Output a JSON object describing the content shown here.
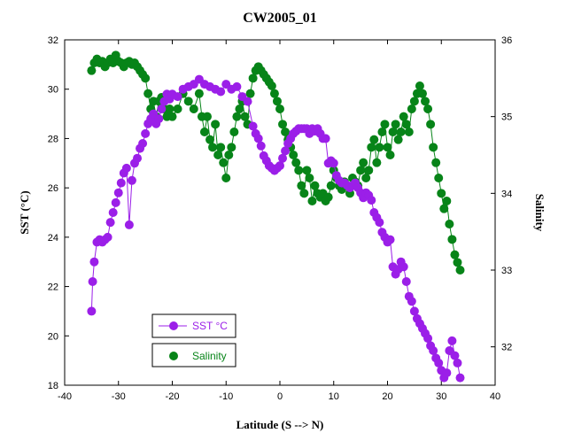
{
  "chart_data": {
    "type": "scatter",
    "title": "CW2005_01",
    "xlabel": "Latitude (S --> N)",
    "ylabel_left": "SST (°C)",
    "ylabel_right": "Salinity",
    "xlim": [
      -40,
      40
    ],
    "ylim_left": [
      18,
      32
    ],
    "ylim_right": [
      31.5,
      36
    ],
    "x_ticks": [
      -40,
      -30,
      -20,
      -10,
      0,
      10,
      20,
      30,
      40
    ],
    "y_ticks_left": [
      18,
      20,
      22,
      24,
      26,
      28,
      30,
      32
    ],
    "y_ticks_right": [
      32,
      33,
      34,
      35,
      36
    ],
    "grid": false,
    "legend_position": "bottom-left",
    "colors": {
      "sst": "#9B1FE8",
      "salinity": "#078418"
    },
    "series": [
      {
        "name": "SST °C",
        "axis": "left",
        "x": [
          -35,
          -34.8,
          -34.5,
          -34,
          -33.5,
          -33,
          -32.5,
          -32,
          -31.5,
          -31,
          -30.5,
          -30,
          -29.5,
          -29,
          -28.5,
          -28,
          -27.5,
          -27,
          -26.5,
          -26,
          -25.5,
          -25,
          -24.5,
          -24,
          -23.5,
          -23,
          -22.5,
          -22,
          -21.5,
          -21,
          -20.5,
          -20,
          -19,
          -18,
          -17,
          -16,
          -15,
          -14,
          -13,
          -12,
          -11,
          -10,
          -9,
          -8,
          -7,
          -6,
          -5,
          -4.5,
          -4,
          -3.5,
          -3,
          -2.5,
          -2,
          -1.5,
          -1,
          -0.5,
          0,
          0.5,
          1,
          1.5,
          2,
          2.5,
          3,
          3.5,
          4,
          4.5,
          5,
          5.5,
          6,
          6.5,
          7,
          7.5,
          8,
          8.5,
          9,
          9.5,
          10,
          10.5,
          11,
          11.5,
          12,
          12.5,
          13,
          13.5,
          14,
          14.5,
          15,
          15.5,
          16,
          16.5,
          17,
          17.5,
          18,
          18.5,
          19,
          19.5,
          20,
          20.5,
          21,
          21.5,
          22,
          22.5,
          23,
          23.5,
          24,
          24.5,
          25,
          25.5,
          26,
          26.5,
          27,
          27.5,
          28,
          28.5,
          29,
          29.5,
          30,
          30.5,
          31,
          31.5,
          32,
          32.5,
          33,
          33.5
        ],
        "values": [
          21.0,
          22.2,
          23.0,
          23.8,
          23.9,
          23.8,
          23.9,
          24.0,
          24.6,
          25.0,
          25.4,
          25.8,
          26.2,
          26.6,
          26.8,
          24.5,
          26.3,
          27.0,
          27.2,
          27.6,
          27.8,
          28.2,
          28.6,
          28.8,
          29.0,
          28.6,
          28.8,
          29.2,
          29.5,
          29.8,
          29.6,
          29.8,
          29.7,
          30.0,
          30.1,
          30.2,
          30.4,
          30.2,
          30.1,
          30.0,
          29.9,
          30.2,
          30.0,
          30.1,
          29.7,
          29.5,
          28.5,
          28.2,
          28.0,
          27.7,
          27.3,
          27.1,
          26.9,
          26.8,
          26.7,
          26.8,
          26.9,
          27.2,
          27.5,
          27.8,
          28.0,
          28.2,
          28.3,
          28.4,
          28.4,
          28.4,
          28.4,
          28.2,
          28.4,
          28.3,
          28.4,
          28.2,
          28.0,
          28.0,
          27.0,
          27.1,
          27.0,
          26.5,
          26.3,
          26.2,
          26.2,
          26.1,
          26.0,
          26.1,
          26.2,
          26.0,
          25.8,
          25.6,
          25.8,
          25.7,
          25.5,
          25.0,
          24.8,
          24.6,
          24.2,
          24.0,
          23.8,
          23.9,
          22.8,
          22.5,
          22.7,
          23.0,
          22.8,
          22.2,
          21.6,
          21.4,
          21.0,
          20.7,
          20.5,
          20.3,
          20.1,
          19.9,
          19.6,
          19.4,
          19.1,
          18.9,
          18.6,
          18.3,
          18.5,
          19.4,
          19.8,
          19.2,
          18.9,
          18.3
        ]
      },
      {
        "name": "Salinity",
        "axis": "right",
        "x": [
          -35,
          -34.5,
          -34,
          -33.5,
          -33,
          -32.5,
          -32,
          -31.5,
          -31,
          -30.5,
          -30,
          -29.5,
          -29,
          -28.5,
          -28,
          -27.5,
          -27,
          -26.5,
          -26,
          -25.5,
          -25,
          -24.5,
          -24,
          -23.5,
          -23,
          -22.5,
          -22,
          -21.5,
          -21,
          -20.5,
          -20,
          -19,
          -18,
          -17,
          -16,
          -15,
          -14.5,
          -14,
          -13.5,
          -13,
          -12.5,
          -12,
          -11.5,
          -11,
          -10.5,
          -10,
          -9.5,
          -9,
          -8.5,
          -8,
          -7.5,
          -7,
          -6.5,
          -6,
          -5.5,
          -5,
          -4.5,
          -4,
          -3.5,
          -3,
          -2.5,
          -2,
          -1.5,
          -1,
          -0.5,
          0,
          0.5,
          1,
          1.5,
          2,
          2.5,
          3,
          3.5,
          4,
          4.5,
          5,
          5.5,
          6,
          6.5,
          7,
          7.5,
          8,
          8.5,
          9,
          9.5,
          10,
          10.5,
          11,
          11.5,
          12,
          12.5,
          13,
          13.5,
          14,
          14.5,
          15,
          15.5,
          16,
          16.5,
          17,
          17.5,
          18,
          18.5,
          19,
          19.5,
          20,
          20.5,
          21,
          21.5,
          22,
          22.5,
          23,
          23.5,
          24,
          24.5,
          25,
          25.5,
          26,
          26.5,
          27,
          27.5,
          28,
          28.5,
          29,
          29.5,
          30,
          30.5,
          31,
          31.5,
          32,
          32.5,
          33,
          33.5
        ],
        "values": [
          35.6,
          35.7,
          35.75,
          35.7,
          35.72,
          35.65,
          35.7,
          35.75,
          35.7,
          35.8,
          35.72,
          35.7,
          35.65,
          35.7,
          35.72,
          35.68,
          35.7,
          35.65,
          35.6,
          35.55,
          35.5,
          35.3,
          35.1,
          35.2,
          35.0,
          35.2,
          35.25,
          35.1,
          35.0,
          35.1,
          35.0,
          35.1,
          35.3,
          35.2,
          35.1,
          35.3,
          35.0,
          34.8,
          35.0,
          34.7,
          34.6,
          34.9,
          34.5,
          34.6,
          34.4,
          34.2,
          34.5,
          34.6,
          34.8,
          35.0,
          35.1,
          35.2,
          35.0,
          34.9,
          35.3,
          35.5,
          35.6,
          35.65,
          35.6,
          35.55,
          35.5,
          35.45,
          35.4,
          35.3,
          35.2,
          35.1,
          34.9,
          34.8,
          34.7,
          34.6,
          34.5,
          34.4,
          34.3,
          34.1,
          34.0,
          34.3,
          34.2,
          33.9,
          34.1,
          34.0,
          33.95,
          34.0,
          33.9,
          33.95,
          34.1,
          34.3,
          34.2,
          34.1,
          34.05,
          34.15,
          34.1,
          34.0,
          34.2,
          34.15,
          34.1,
          34.3,
          34.4,
          34.2,
          34.3,
          34.6,
          34.7,
          34.4,
          34.6,
          34.8,
          34.9,
          34.6,
          34.5,
          34.8,
          34.9,
          34.7,
          34.8,
          35.0,
          34.9,
          34.8,
          35.1,
          35.2,
          35.3,
          35.4,
          35.3,
          35.2,
          35.1,
          34.9,
          34.6,
          34.4,
          34.2,
          34.0,
          33.8,
          33.9,
          33.6,
          33.4,
          33.2,
          33.1,
          33.0
        ]
      }
    ]
  },
  "legend": {
    "sst_label": "SST °C",
    "salinity_label": "Salinity"
  }
}
